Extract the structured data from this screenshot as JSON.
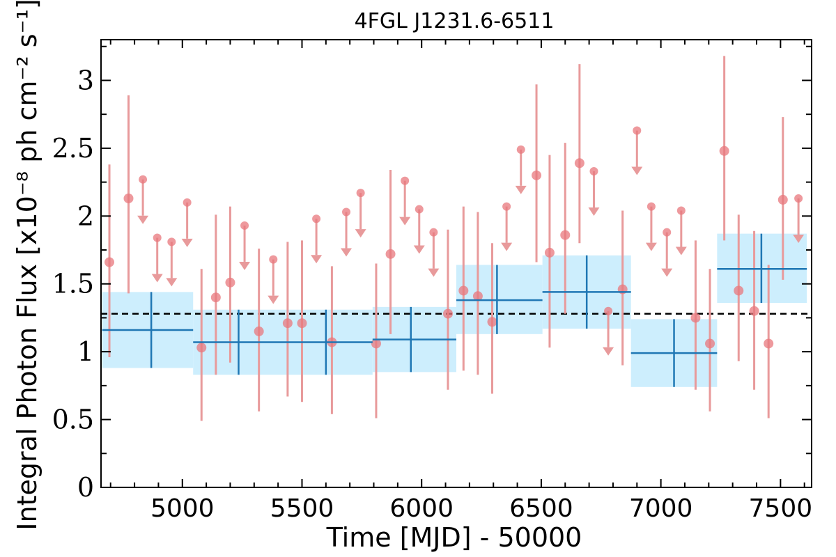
{
  "chart_data": {
    "type": "scatter",
    "title": "4FGL J1231.6-6511",
    "xlabel": "Time [MJD] - 50000",
    "ylabel": "Integral Photon Flux [x10⁻⁸ ph cm⁻² s⁻¹]",
    "xlim": [
      4660,
      7630
    ],
    "ylim": [
      0,
      3.3
    ],
    "xticks": [
      5000,
      5500,
      6000,
      6500,
      7000,
      7500
    ],
    "yticks": [
      0,
      0.5,
      1,
      1.5,
      2,
      2.5,
      3
    ],
    "xtick_labels": [
      "5000",
      "5500",
      "6000",
      "6500",
      "7000",
      "7500"
    ],
    "ytick_labels": [
      "0",
      "0.5",
      "1",
      "1.5",
      "2",
      "2.5",
      "3"
    ],
    "mean_flux": 1.28,
    "grid": false,
    "colors": {
      "points": "#e8777c",
      "errorbars": "#e89a9b",
      "bins": "#1f77b4",
      "band": "#cdeefd",
      "mean": "#000000"
    },
    "short_bins": {
      "detections": [
        {
          "x": 4695,
          "y": 1.66,
          "lo": 0.96,
          "hi": 2.38
        },
        {
          "x": 4775,
          "y": 2.13,
          "lo": 1.43,
          "hi": 2.89
        },
        {
          "x": 5080,
          "y": 1.03,
          "lo": 0.49,
          "hi": 1.61
        },
        {
          "x": 5140,
          "y": 1.4,
          "lo": 0.83,
          "hi": 2.01
        },
        {
          "x": 5200,
          "y": 1.51,
          "lo": 0.92,
          "hi": 2.07
        },
        {
          "x": 5320,
          "y": 1.15,
          "lo": 0.56,
          "hi": 1.76
        },
        {
          "x": 5440,
          "y": 1.21,
          "lo": 0.67,
          "hi": 1.81
        },
        {
          "x": 5500,
          "y": 1.21,
          "lo": 0.63,
          "hi": 1.82
        },
        {
          "x": 5625,
          "y": 1.07,
          "lo": 0.54,
          "hi": 1.63
        },
        {
          "x": 5810,
          "y": 1.06,
          "lo": 0.51,
          "hi": 1.65
        },
        {
          "x": 5870,
          "y": 1.72,
          "lo": 1.13,
          "hi": 2.34
        },
        {
          "x": 6110,
          "y": 1.28,
          "lo": 0.72,
          "hi": 1.9
        },
        {
          "x": 6175,
          "y": 1.45,
          "lo": 0.86,
          "hi": 2.07
        },
        {
          "x": 6235,
          "y": 1.41,
          "lo": 0.83,
          "hi": 2.03
        },
        {
          "x": 6295,
          "y": 1.22,
          "lo": 0.69,
          "hi": 1.8
        },
        {
          "x": 6480,
          "y": 2.3,
          "lo": 1.66,
          "hi": 2.97
        },
        {
          "x": 6535,
          "y": 1.73,
          "lo": 1.03,
          "hi": 2.45
        },
        {
          "x": 6600,
          "y": 1.86,
          "lo": 1.28,
          "hi": 2.54
        },
        {
          "x": 6660,
          "y": 2.39,
          "lo": 1.8,
          "hi": 3.12
        },
        {
          "x": 6840,
          "y": 1.46,
          "lo": 0.9,
          "hi": 2.04
        },
        {
          "x": 7145,
          "y": 1.25,
          "lo": 0.72,
          "hi": 1.82
        },
        {
          "x": 7205,
          "y": 1.06,
          "lo": 0.56,
          "hi": 1.61
        },
        {
          "x": 7265,
          "y": 2.48,
          "lo": 1.82,
          "hi": 3.18
        },
        {
          "x": 7325,
          "y": 1.45,
          "lo": 0.93,
          "hi": 2.01
        },
        {
          "x": 7390,
          "y": 1.3,
          "lo": 0.72,
          "hi": 1.89
        },
        {
          "x": 7450,
          "y": 1.06,
          "lo": 0.51,
          "hi": 1.64
        },
        {
          "x": 7510,
          "y": 2.12,
          "lo": 1.53,
          "hi": 2.73
        }
      ],
      "upper_limits": [
        {
          "x": 4835,
          "y": 2.27
        },
        {
          "x": 4895,
          "y": 1.84
        },
        {
          "x": 4955,
          "y": 1.81
        },
        {
          "x": 5020,
          "y": 2.1
        },
        {
          "x": 5260,
          "y": 1.93
        },
        {
          "x": 5380,
          "y": 1.68
        },
        {
          "x": 5560,
          "y": 1.98
        },
        {
          "x": 5685,
          "y": 2.03
        },
        {
          "x": 5745,
          "y": 2.17
        },
        {
          "x": 5930,
          "y": 2.26
        },
        {
          "x": 5990,
          "y": 2.05
        },
        {
          "x": 6050,
          "y": 1.88
        },
        {
          "x": 6355,
          "y": 2.07
        },
        {
          "x": 6415,
          "y": 2.49
        },
        {
          "x": 6720,
          "y": 2.33
        },
        {
          "x": 6780,
          "y": 1.3
        },
        {
          "x": 6900,
          "y": 2.63
        },
        {
          "x": 6960,
          "y": 2.07
        },
        {
          "x": 7025,
          "y": 1.88
        },
        {
          "x": 7085,
          "y": 2.04
        },
        {
          "x": 7575,
          "y": 2.13
        }
      ]
    },
    "long_bins": [
      {
        "x0": 4665,
        "x1": 5045,
        "y": 1.16,
        "ylo": 0.88,
        "yhi": 1.44,
        "xc": 4870
      },
      {
        "x0": 5045,
        "x1": 5795,
        "y": 1.07,
        "ylo": 0.83,
        "yhi": 1.31,
        "xc": [
          5235,
          5600
        ],
        "band_lo": 0.83,
        "band_hi": 1.31
      },
      {
        "x0": 5795,
        "x1": 6145,
        "y": 1.09,
        "ylo": 0.85,
        "yhi": 1.33,
        "xc": 5955
      },
      {
        "x0": 6145,
        "x1": 6505,
        "y": 1.38,
        "ylo": 1.13,
        "yhi": 1.64,
        "xc": 6315
      },
      {
        "x0": 6505,
        "x1": 6875,
        "y": 1.44,
        "ylo": 1.17,
        "yhi": 1.71,
        "xc": 6690
      },
      {
        "x0": 6875,
        "x1": 7235,
        "y": 0.99,
        "ylo": 0.74,
        "yhi": 1.24,
        "xc": 7055
      },
      {
        "x0": 7235,
        "x1": 7610,
        "y": 1.61,
        "ylo": 1.36,
        "yhi": 1.87,
        "xc": 7420
      }
    ]
  }
}
